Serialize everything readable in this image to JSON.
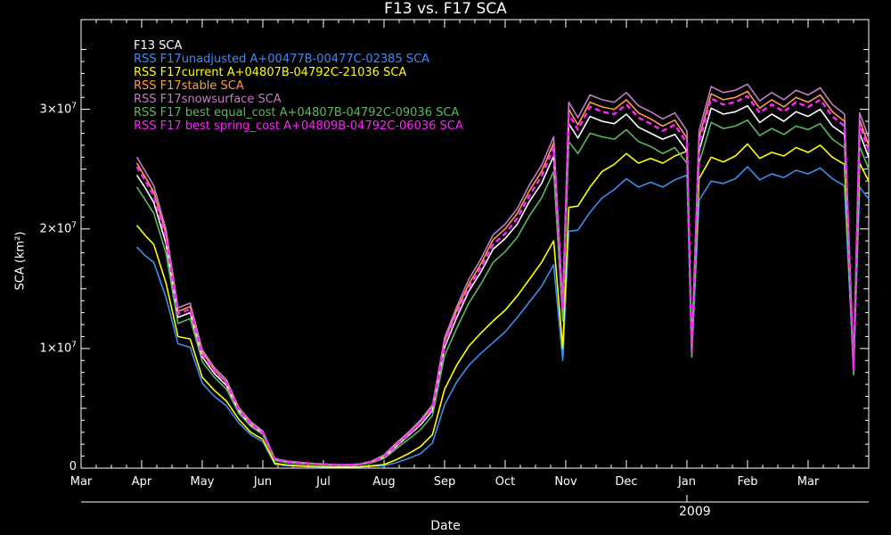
{
  "chart_data": {
    "type": "line",
    "title": "F13 vs. F17 SCA",
    "xlabel": "Date",
    "ylabel": "SCA (km²)",
    "year_label": "2009",
    "x_ticks": [
      "Mar",
      "Apr",
      "May",
      "Jun",
      "Jul",
      "Aug",
      "Sep",
      "Oct",
      "Nov",
      "Dec",
      "Jan",
      "Feb",
      "Mar"
    ],
    "y_ticks": [
      {
        "value": 0,
        "label": "0"
      },
      {
        "value": 10000000,
        "label": "1×10",
        "exp": "7"
      },
      {
        "value": 20000000,
        "label": "2×10",
        "exp": "7"
      },
      {
        "value": 30000000,
        "label": "3×10",
        "exp": "7"
      }
    ],
    "ylim": [
      0,
      37500000
    ],
    "x_range_months": [
      0,
      13
    ],
    "grid": false,
    "legend_position": "top-left",
    "x_months": [
      0.92,
      1.05,
      1.2,
      1.4,
      1.6,
      1.8,
      2.0,
      2.2,
      2.4,
      2.6,
      2.8,
      3.0,
      3.2,
      3.4,
      3.6,
      3.8,
      4.0,
      4.2,
      4.4,
      4.6,
      4.8,
      5.0,
      5.2,
      5.4,
      5.6,
      5.8,
      6.0,
      6.2,
      6.4,
      6.6,
      6.8,
      7.0,
      7.2,
      7.4,
      7.6,
      7.8,
      7.95,
      8.05,
      8.2,
      8.4,
      8.6,
      8.8,
      9.0,
      9.2,
      9.4,
      9.6,
      9.8,
      10.0,
      10.08,
      10.2,
      10.4,
      10.6,
      10.8,
      11.0,
      11.2,
      11.4,
      11.6,
      11.8,
      12.0,
      12.2,
      12.4,
      12.6,
      12.75,
      12.85,
      13.0
    ],
    "series": [
      {
        "name": "F13 SCA",
        "color": "#ffffff",
        "values": [
          24.5,
          23.5,
          22.2,
          18.8,
          12.6,
          13.0,
          9.3,
          7.9,
          6.9,
          4.8,
          3.6,
          2.9,
          0.7,
          0.5,
          0.4,
          0.35,
          0.3,
          0.25,
          0.25,
          0.3,
          0.5,
          0.9,
          1.8,
          2.7,
          3.6,
          4.8,
          10.1,
          12.6,
          14.8,
          16.4,
          18.3,
          19.2,
          20.4,
          22.3,
          23.8,
          26.1,
          13.0,
          28.8,
          27.6,
          29.4,
          29.0,
          28.8,
          29.6,
          28.5,
          28.0,
          27.5,
          27.9,
          26.5,
          9.5,
          26.5,
          30.1,
          29.6,
          29.8,
          30.3,
          28.9,
          29.6,
          29.0,
          29.8,
          29.4,
          30.0,
          28.6,
          27.9,
          8.0,
          28.0,
          26.0
        ]
      },
      {
        "name": "RSS F17unadjusted A+00477B-00477C-02385 SCA",
        "color": "#3a8ef0",
        "values": [
          18.5,
          17.8,
          17.2,
          14.3,
          10.4,
          10.1,
          7.1,
          6.0,
          5.2,
          3.8,
          2.8,
          2.2,
          0.3,
          0.2,
          0.15,
          0.12,
          0.1,
          0.1,
          0.1,
          0.1,
          0.15,
          0.2,
          0.45,
          0.8,
          1.2,
          2.1,
          5.3,
          7.2,
          8.6,
          9.6,
          10.5,
          11.4,
          12.6,
          13.9,
          15.2,
          17.0,
          9.0,
          19.8,
          19.9,
          21.4,
          22.6,
          23.3,
          24.2,
          23.5,
          23.9,
          23.5,
          24.1,
          24.5,
          9.3,
          22.4,
          24.0,
          23.8,
          24.2,
          25.2,
          24.1,
          24.6,
          24.3,
          24.9,
          24.6,
          25.1,
          24.2,
          23.6,
          8.0,
          23.5,
          22.5
        ]
      },
      {
        "name": "RSS F17current A+04807B-04792C-21036 SCA",
        "color": "#ffff00",
        "values": [
          20.3,
          19.5,
          18.7,
          15.5,
          11.0,
          10.8,
          7.6,
          6.5,
          5.6,
          4.1,
          3.0,
          2.4,
          0.4,
          0.25,
          0.2,
          0.15,
          0.12,
          0.1,
          0.1,
          0.12,
          0.2,
          0.3,
          0.7,
          1.2,
          1.8,
          2.8,
          6.6,
          8.6,
          10.2,
          11.3,
          12.3,
          13.2,
          14.4,
          15.8,
          17.2,
          19.0,
          10.0,
          21.8,
          21.9,
          23.5,
          24.8,
          25.4,
          26.3,
          25.5,
          25.9,
          25.5,
          26.1,
          26.5,
          9.6,
          24.2,
          26.0,
          25.6,
          26.1,
          27.1,
          25.9,
          26.4,
          26.1,
          26.8,
          26.4,
          27.0,
          26.0,
          25.4,
          8.2,
          25.5,
          24.0
        ]
      },
      {
        "name": "RSS F17stable  SCA",
        "color": "#ff9a4d",
        "values": [
          25.5,
          24.4,
          23.1,
          19.6,
          13.1,
          13.5,
          9.7,
          8.2,
          7.2,
          5.0,
          3.8,
          3.0,
          0.75,
          0.55,
          0.45,
          0.38,
          0.32,
          0.28,
          0.27,
          0.32,
          0.55,
          1.0,
          2.0,
          2.9,
          3.9,
          5.1,
          10.6,
          13.2,
          15.4,
          17.1,
          19.1,
          20.0,
          21.3,
          23.2,
          24.8,
          27.2,
          13.5,
          30.0,
          28.7,
          30.6,
          30.2,
          30.0,
          30.8,
          29.7,
          29.2,
          28.6,
          29.1,
          27.6,
          9.9,
          27.6,
          31.3,
          30.8,
          31.0,
          31.5,
          30.1,
          30.8,
          30.2,
          31.0,
          30.6,
          31.2,
          29.8,
          29.0,
          8.3,
          29.1,
          27.0
        ]
      },
      {
        "name": "RSS F17snowsurface  SCA",
        "color": "#c37bc3",
        "values": [
          26.0,
          24.9,
          23.6,
          20.0,
          13.4,
          13.8,
          9.9,
          8.4,
          7.4,
          5.1,
          3.9,
          3.1,
          0.8,
          0.6,
          0.5,
          0.4,
          0.35,
          0.3,
          0.3,
          0.35,
          0.6,
          1.1,
          2.1,
          3.0,
          4.0,
          5.3,
          10.9,
          13.5,
          15.8,
          17.5,
          19.5,
          20.4,
          21.7,
          23.7,
          25.3,
          27.7,
          13.8,
          30.6,
          29.3,
          31.2,
          30.8,
          30.6,
          31.4,
          30.3,
          29.8,
          29.2,
          29.7,
          28.2,
          10.1,
          28.2,
          31.9,
          31.4,
          31.6,
          32.1,
          30.7,
          31.4,
          30.8,
          31.6,
          31.2,
          31.8,
          30.4,
          29.6,
          8.5,
          29.7,
          27.6
        ]
      },
      {
        "name": "RSS F17 best equal_cost A+04807B-04792C-09036 SCA",
        "color": "#5cb85c",
        "values": [
          23.5,
          22.5,
          21.3,
          18.0,
          12.1,
          12.5,
          8.9,
          7.6,
          6.6,
          4.6,
          3.5,
          2.8,
          0.65,
          0.45,
          0.38,
          0.32,
          0.28,
          0.24,
          0.23,
          0.28,
          0.45,
          0.8,
          1.6,
          2.4,
          3.2,
          4.4,
          9.4,
          11.7,
          13.8,
          15.4,
          17.2,
          18.1,
          19.3,
          21.1,
          22.6,
          24.8,
          12.3,
          27.3,
          26.3,
          28.0,
          27.7,
          27.5,
          28.3,
          27.3,
          26.9,
          26.3,
          26.8,
          25.5,
          9.3,
          25.5,
          28.9,
          28.4,
          28.6,
          29.1,
          27.8,
          28.4,
          27.9,
          28.6,
          28.3,
          28.8,
          27.5,
          26.8,
          7.8,
          26.9,
          25.0
        ]
      },
      {
        "name": "RSS F17 best spring_cost A+04809B-04792C-06036 SCA",
        "color": "#ff22ff",
        "dashed": true,
        "values": [
          25.2,
          24.1,
          22.8,
          19.3,
          12.9,
          13.3,
          9.5,
          8.1,
          7.1,
          4.9,
          3.7,
          2.95,
          0.72,
          0.52,
          0.42,
          0.36,
          0.31,
          0.27,
          0.26,
          0.31,
          0.52,
          0.95,
          1.9,
          2.8,
          3.75,
          5.0,
          10.4,
          12.9,
          15.1,
          16.8,
          18.7,
          19.6,
          20.9,
          22.8,
          24.4,
          26.8,
          13.3,
          29.6,
          28.3,
          30.2,
          29.8,
          29.6,
          30.4,
          29.3,
          28.8,
          28.2,
          28.7,
          27.2,
          9.8,
          27.2,
          30.9,
          30.4,
          30.6,
          31.1,
          29.7,
          30.4,
          29.8,
          30.6,
          30.2,
          30.8,
          29.4,
          28.6,
          8.2,
          28.7,
          26.6
        ]
      }
    ]
  }
}
